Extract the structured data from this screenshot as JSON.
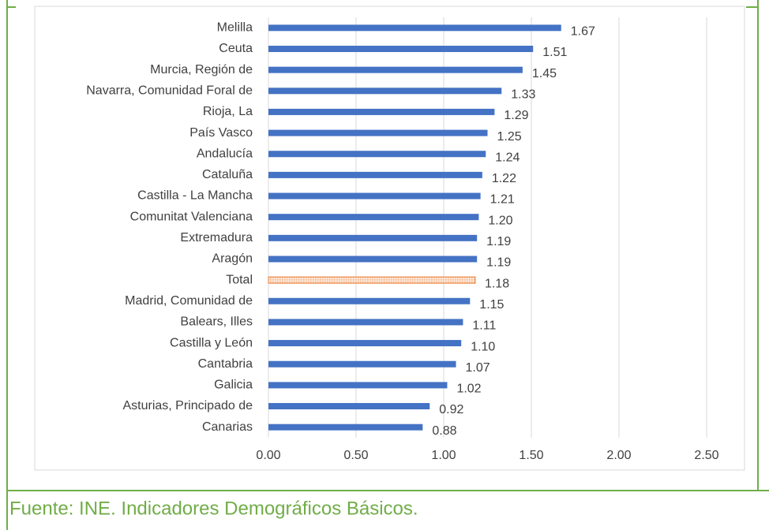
{
  "chart_data": {
    "type": "hbar",
    "categories": [
      "Melilla",
      "Ceuta",
      "Murcia, Región de",
      "Navarra, Comunidad Foral de",
      "Rioja, La",
      "País Vasco",
      "Andalucía",
      "Cataluña",
      "Castilla - La Mancha",
      "Comunitat Valenciana",
      "Extremadura",
      "Aragón",
      "Total",
      "Madrid, Comunidad de",
      "Balears, Illes",
      "Castilla y León",
      "Cantabria",
      "Galicia",
      "Asturias, Principado de",
      "Canarias"
    ],
    "values": [
      1.67,
      1.51,
      1.45,
      1.33,
      1.29,
      1.25,
      1.24,
      1.22,
      1.21,
      1.2,
      1.19,
      1.19,
      1.18,
      1.15,
      1.11,
      1.1,
      1.07,
      1.02,
      0.92,
      0.88
    ],
    "value_labels": [
      "1.67",
      "1.51",
      "1.45",
      "1.33",
      "1.29",
      "1.25",
      "1.24",
      "1.22",
      "1.21",
      "1.20",
      "1.19",
      "1.19",
      "1.18",
      "1.15",
      "1.11",
      "1.10",
      "1.07",
      "1.02",
      "0.92",
      "0.88"
    ],
    "colors": [
      "#4472c4",
      "#4472c4",
      "#4472c4",
      "#4472c4",
      "#4472c4",
      "#4472c4",
      "#4472c4",
      "#4472c4",
      "#4472c4",
      "#4472c4",
      "#4472c4",
      "#4472c4",
      "#f4b183",
      "#4472c4",
      "#4472c4",
      "#4472c4",
      "#4472c4",
      "#4472c4",
      "#4472c4",
      "#4472c4"
    ],
    "xlim": [
      0,
      2.5
    ],
    "xticks": [
      {
        "value": 0,
        "label": "0.00"
      },
      {
        "value": 0.5,
        "label": "0.50"
      },
      {
        "value": 1,
        "label": "1.00"
      },
      {
        "value": 1.5,
        "label": "1.50"
      },
      {
        "value": 2,
        "label": "2.00"
      },
      {
        "value": 2.5,
        "label": "2.50"
      }
    ],
    "grid": true,
    "source": "Fuente: INE. Indicadores Demográficos Básicos."
  }
}
